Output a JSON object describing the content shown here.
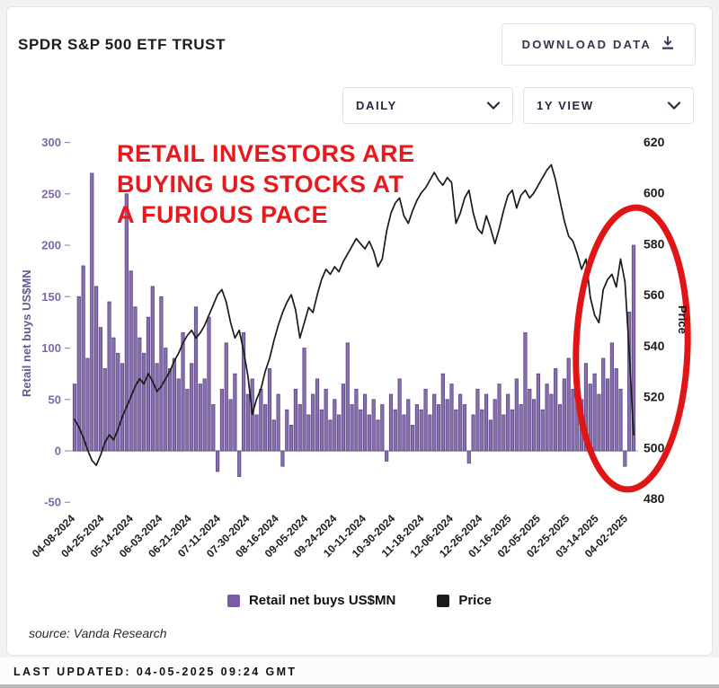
{
  "header": {
    "title": "SPDR S&P 500 ETF TRUST",
    "download_label": "DOWNLOAD DATA"
  },
  "controls": {
    "frequency_value": "DAILY",
    "range_value": "1Y VIEW"
  },
  "annotation": {
    "lines": [
      "RETAIL INVESTORS ARE",
      "BUYING US STOCKS AT",
      "A FURIOUS PACE"
    ],
    "color": "#e8191d"
  },
  "chart_data": {
    "type": "bar+line",
    "title": "",
    "x_tick_labels": [
      "04-08-2024",
      "04-25-2024",
      "05-14-2024",
      "06-03-2024",
      "06-21-2024",
      "07-11-2024",
      "07-30-2024",
      "08-16-2024",
      "09-05-2024",
      "09-24-2024",
      "10-11-2024",
      "10-30-2024",
      "11-18-2024",
      "12-06-2024",
      "12-26-2024",
      "01-16-2025",
      "02-05-2025",
      "02-25-2025",
      "03-14-2025",
      "04-02-2025"
    ],
    "left_axis": {
      "label": "Retail net buys US$MN",
      "ticks": [
        300,
        250,
        200,
        150,
        100,
        50,
        0,
        -50
      ],
      "range": [
        -50,
        300
      ],
      "color": "#7c68a8"
    },
    "right_axis": {
      "label": "Price",
      "ticks": [
        620,
        600,
        580,
        560,
        540,
        520,
        500,
        480
      ],
      "range": [
        480,
        620
      ],
      "color": "#1c1c1c"
    },
    "grid": false,
    "series": [
      {
        "name": "Retail net buys US$MN",
        "type": "bar",
        "color": "#8a6fae",
        "border_color": "#5a4686",
        "axis": "left",
        "values": [
          65,
          150,
          180,
          90,
          270,
          160,
          120,
          80,
          145,
          110,
          95,
          85,
          250,
          175,
          140,
          110,
          95,
          130,
          160,
          85,
          150,
          100,
          80,
          90,
          70,
          115,
          60,
          85,
          140,
          65,
          70,
          130,
          45,
          -20,
          60,
          105,
          50,
          75,
          -25,
          115,
          55,
          70,
          35,
          60,
          45,
          80,
          30,
          55,
          -15,
          40,
          25,
          60,
          45,
          100,
          35,
          55,
          70,
          40,
          60,
          30,
          50,
          35,
          65,
          105,
          45,
          60,
          40,
          55,
          35,
          50,
          30,
          45,
          -10,
          55,
          40,
          70,
          35,
          50,
          25,
          45,
          40,
          60,
          35,
          55,
          45,
          75,
          50,
          65,
          40,
          55,
          45,
          -12,
          35,
          60,
          40,
          55,
          30,
          50,
          65,
          35,
          55,
          40,
          70,
          45,
          115,
          60,
          50,
          75,
          40,
          65,
          55,
          80,
          45,
          70,
          90,
          60,
          75,
          50,
          85,
          65,
          75,
          55,
          90,
          70,
          105,
          80,
          60,
          -15,
          135,
          200
        ]
      },
      {
        "name": "Price",
        "type": "line",
        "color": "#1a1a1a",
        "axis": "right",
        "values": [
          511,
          508,
          504,
          499,
          495,
          493,
          497,
          502,
          505,
          503,
          507,
          512,
          516,
          520,
          524,
          527,
          525,
          529,
          526,
          522,
          524,
          527,
          530,
          534,
          537,
          541,
          544,
          546,
          543,
          545,
          548,
          552,
          556,
          560,
          562,
          557,
          549,
          543,
          546,
          538,
          528,
          513,
          519,
          523,
          530,
          535,
          542,
          548,
          553,
          557,
          560,
          554,
          543,
          549,
          555,
          553,
          560,
          566,
          570,
          568,
          571,
          569,
          573,
          576,
          579,
          582,
          580,
          578,
          581,
          577,
          571,
          574,
          585,
          592,
          596,
          598,
          591,
          588,
          593,
          597,
          600,
          602,
          605,
          608,
          605,
          603,
          606,
          604,
          588,
          592,
          598,
          601,
          592,
          586,
          584,
          591,
          586,
          580,
          586,
          593,
          599,
          601,
          594,
          599,
          601,
          598,
          600,
          603,
          606,
          609,
          611,
          605,
          597,
          589,
          583,
          581,
          576,
          570,
          574,
          559,
          552,
          549,
          562,
          566,
          568,
          563,
          574,
          565,
          537,
          505
        ]
      }
    ],
    "highlight_ellipse": {
      "color": "#e01515",
      "note": "circles the March-April 2025 surge in retail buying and price drop"
    }
  },
  "legend": [
    {
      "label": "Retail net buys US$MN",
      "color": "#7b5aa6"
    },
    {
      "label": "Price",
      "color": "#1a1a1a"
    }
  ],
  "source": "source: Vanda Research",
  "last_updated": "LAST UPDATED: 04-05-2025 09:24 GMT"
}
